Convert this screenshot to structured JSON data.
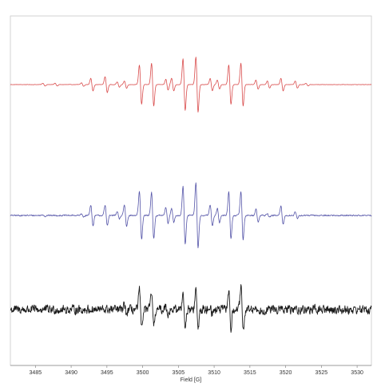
{
  "chart_data": {
    "type": "line",
    "title": "",
    "xlabel": "Field [G]",
    "ylabel": "",
    "xlim": [
      3481.5,
      3532.0
    ],
    "x_ticks": [
      "3485",
      "3490",
      "3495",
      "3500",
      "3505",
      "3510",
      "3515",
      "3520",
      "3525",
      "3530"
    ],
    "x_tick_values": [
      3485,
      3490,
      3495,
      3500,
      3505,
      3510,
      3515,
      3520,
      3525,
      3530
    ],
    "grid": false,
    "legend": "none",
    "series": [
      {
        "color": "#d94b4b",
        "noise": 0.3,
        "lines": [
          [
            3486.2,
            3
          ],
          [
            3487.9,
            3
          ],
          [
            3491.6,
            4
          ],
          [
            3492.9,
            14
          ],
          [
            3494.9,
            18
          ],
          [
            3496.6,
            6
          ],
          [
            3497.6,
            8
          ],
          [
            3499.7,
            44
          ],
          [
            3501.4,
            48
          ],
          [
            3503.4,
            12
          ],
          [
            3504.2,
            14
          ],
          [
            3505.8,
            58
          ],
          [
            3507.6,
            62
          ],
          [
            3509.6,
            14
          ],
          [
            3510.6,
            10
          ],
          [
            3512.2,
            44
          ],
          [
            3513.9,
            48
          ],
          [
            3516.0,
            10
          ],
          [
            3517.6,
            8
          ],
          [
            3519.5,
            14
          ],
          [
            3521.5,
            8
          ],
          [
            3523.0,
            3
          ]
        ]
      },
      {
        "color": "#5454a8",
        "noise": 1.2,
        "lines": [
          [
            3486.2,
            2
          ],
          [
            3491.6,
            3
          ],
          [
            3492.9,
            24
          ],
          [
            3494.9,
            22
          ],
          [
            3496.6,
            8
          ],
          [
            3497.6,
            24
          ],
          [
            3499.7,
            54
          ],
          [
            3501.4,
            52
          ],
          [
            3503.4,
            18
          ],
          [
            3504.2,
            16
          ],
          [
            3505.8,
            66
          ],
          [
            3507.6,
            74
          ],
          [
            3509.6,
            24
          ],
          [
            3510.6,
            16
          ],
          [
            3512.2,
            52
          ],
          [
            3513.9,
            54
          ],
          [
            3516.0,
            14
          ],
          [
            3517.6,
            4
          ],
          [
            3519.5,
            20
          ],
          [
            3521.5,
            8
          ]
        ]
      },
      {
        "color": "#1a1a1a",
        "noise": 7.5,
        "lines": [
          [
            3497.6,
            10
          ],
          [
            3499.7,
            44
          ],
          [
            3501.4,
            40
          ],
          [
            3503.4,
            10
          ],
          [
            3505.8,
            42
          ],
          [
            3507.6,
            44
          ],
          [
            3509.6,
            10
          ],
          [
            3512.2,
            44
          ],
          [
            3513.9,
            52
          ],
          [
            3516.0,
            8
          ]
        ]
      }
    ]
  }
}
